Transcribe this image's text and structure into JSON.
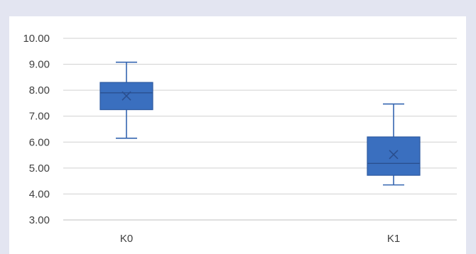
{
  "chart_data": {
    "type": "box",
    "title": "",
    "xlabel": "",
    "ylabel": "",
    "ylim": [
      3.0,
      10.0
    ],
    "yticks": [
      "3.00",
      "4.00",
      "5.00",
      "6.00",
      "7.00",
      "8.00",
      "9.00",
      "10.00"
    ],
    "grid": true,
    "categories": [
      "K0",
      "K1"
    ],
    "boxes": [
      {
        "label": "K0",
        "min": 6.15,
        "q1": 7.25,
        "median": 7.9,
        "q3": 8.3,
        "max": 9.08,
        "mean": 7.78
      },
      {
        "label": "K1",
        "min": 4.35,
        "q1": 4.72,
        "median": 5.18,
        "q3": 6.2,
        "max": 7.47,
        "mean": 5.52
      }
    ],
    "colors": {
      "box_fill": "#3a6fbf",
      "box_stroke": "#2e5aa1",
      "whisker": "#3566b0",
      "grid": "#d0d0d0",
      "axis": "#bfbfbf"
    }
  }
}
